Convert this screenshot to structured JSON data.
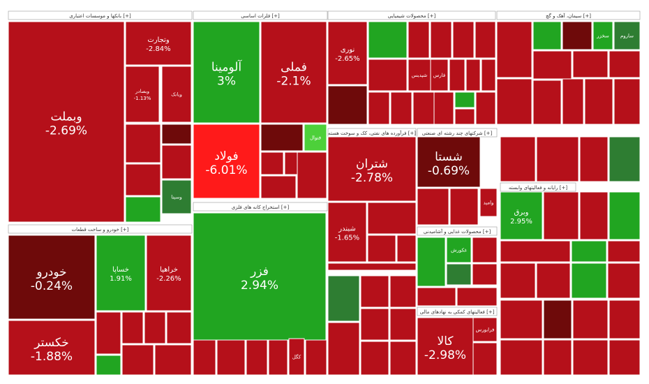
{
  "chart_data": {
    "type": "heatmap",
    "subtype": "treemap",
    "color_scale": {
      "strong_negative": "#ff1a1a",
      "negative": "#b5101a",
      "weak_negative": "#6e0a0a",
      "weak_positive": "#2e7d32",
      "positive": "#21a521",
      "strong_positive": "#4dd03a"
    },
    "sectors": [
      {
        "title": "بانکها و موسسات اعتباری [+]",
        "tiles": [
          {
            "label": "وبملت",
            "change": "-2.69%",
            "pct": -2.69
          },
          {
            "label": "وتجارت",
            "change": "-2.84%",
            "pct": -2.84
          },
          {
            "label": "وبصادر",
            "change": "-1.13%",
            "pct": -1.13
          },
          {
            "label": "وبانک",
            "change": "",
            "pct": -1.0
          },
          {
            "label": "وسینا",
            "change": "",
            "pct": 0.5
          }
        ]
      },
      {
        "title": "فلزات اساسی [+]",
        "tiles": [
          {
            "label": "آلومینا",
            "change": "3%",
            "pct": 3.0
          },
          {
            "label": "فملی",
            "change": "-2.1%",
            "pct": -2.1
          },
          {
            "label": "فولاد",
            "change": "-6.01%",
            "pct": -6.01
          },
          {
            "label": "فنوال",
            "change": "",
            "pct": 4.0
          }
        ]
      },
      {
        "title": "محصولات شیمیایی [+]",
        "tiles": [
          {
            "label": "نوری",
            "change": "-2.65%",
            "pct": -2.65
          },
          {
            "label": "شپدیس",
            "change": "",
            "pct": -1.9
          },
          {
            "label": "فارس",
            "change": "",
            "pct": -1.5
          }
        ]
      },
      {
        "title": "سیمان، آهک و گچ [+]",
        "tiles": [
          {
            "label": "ساروم",
            "change": "",
            "pct": 1.2
          },
          {
            "label": "سخزر",
            "change": "",
            "pct": 2.0
          }
        ]
      },
      {
        "title": "خودرو و ساخت قطعات [+]",
        "tiles": [
          {
            "label": "خودرو",
            "change": "-0.24%",
            "pct": -0.24
          },
          {
            "label": "خساپا",
            "change": "1.91%",
            "pct": 1.91
          },
          {
            "label": "خراهیا",
            "change": "-2.26%",
            "pct": -2.26
          },
          {
            "label": "خکستر",
            "change": "-1.88%",
            "pct": -1.88
          }
        ]
      },
      {
        "title": "استخراج کانه های فلزی [+]",
        "tiles": [
          {
            "label": "فزر",
            "change": "2.94%",
            "pct": 2.94
          },
          {
            "label": "کگل",
            "change": "",
            "pct": -1.4
          }
        ]
      },
      {
        "title": "فرآورده های نفتی، کک و سوخت هسته [+]",
        "tiles": [
          {
            "label": "شتران",
            "change": "-2.78%",
            "pct": -2.78
          },
          {
            "label": "شبندر",
            "change": "-1.65%",
            "pct": -1.65
          }
        ]
      },
      {
        "title": "شرکتهای چند رشته ای صنعتی [+]",
        "tiles": [
          {
            "label": "شستا",
            "change": "-0.69%",
            "pct": -0.69
          },
          {
            "label": "وامید",
            "change": "",
            "pct": -1.2
          }
        ]
      },
      {
        "title": "رایانه و فعالیتهای وابسته [+]",
        "tiles": [
          {
            "label": "وبرق",
            "change": "2.95%",
            "pct": 2.95
          }
        ]
      },
      {
        "title": "فعالیتهای کمکی به نهادهای مالی [+]",
        "tiles": [
          {
            "label": "کالا",
            "change": "-2.98%",
            "pct": -2.98
          },
          {
            "label": "فرابورس",
            "change": "",
            "pct": -1.8
          }
        ]
      },
      {
        "title": "محصولات غذایی و آشامیدنی [+]",
        "tiles": [
          {
            "label": "غکورش",
            "change": "",
            "pct": 1.5
          }
        ]
      }
    ]
  }
}
